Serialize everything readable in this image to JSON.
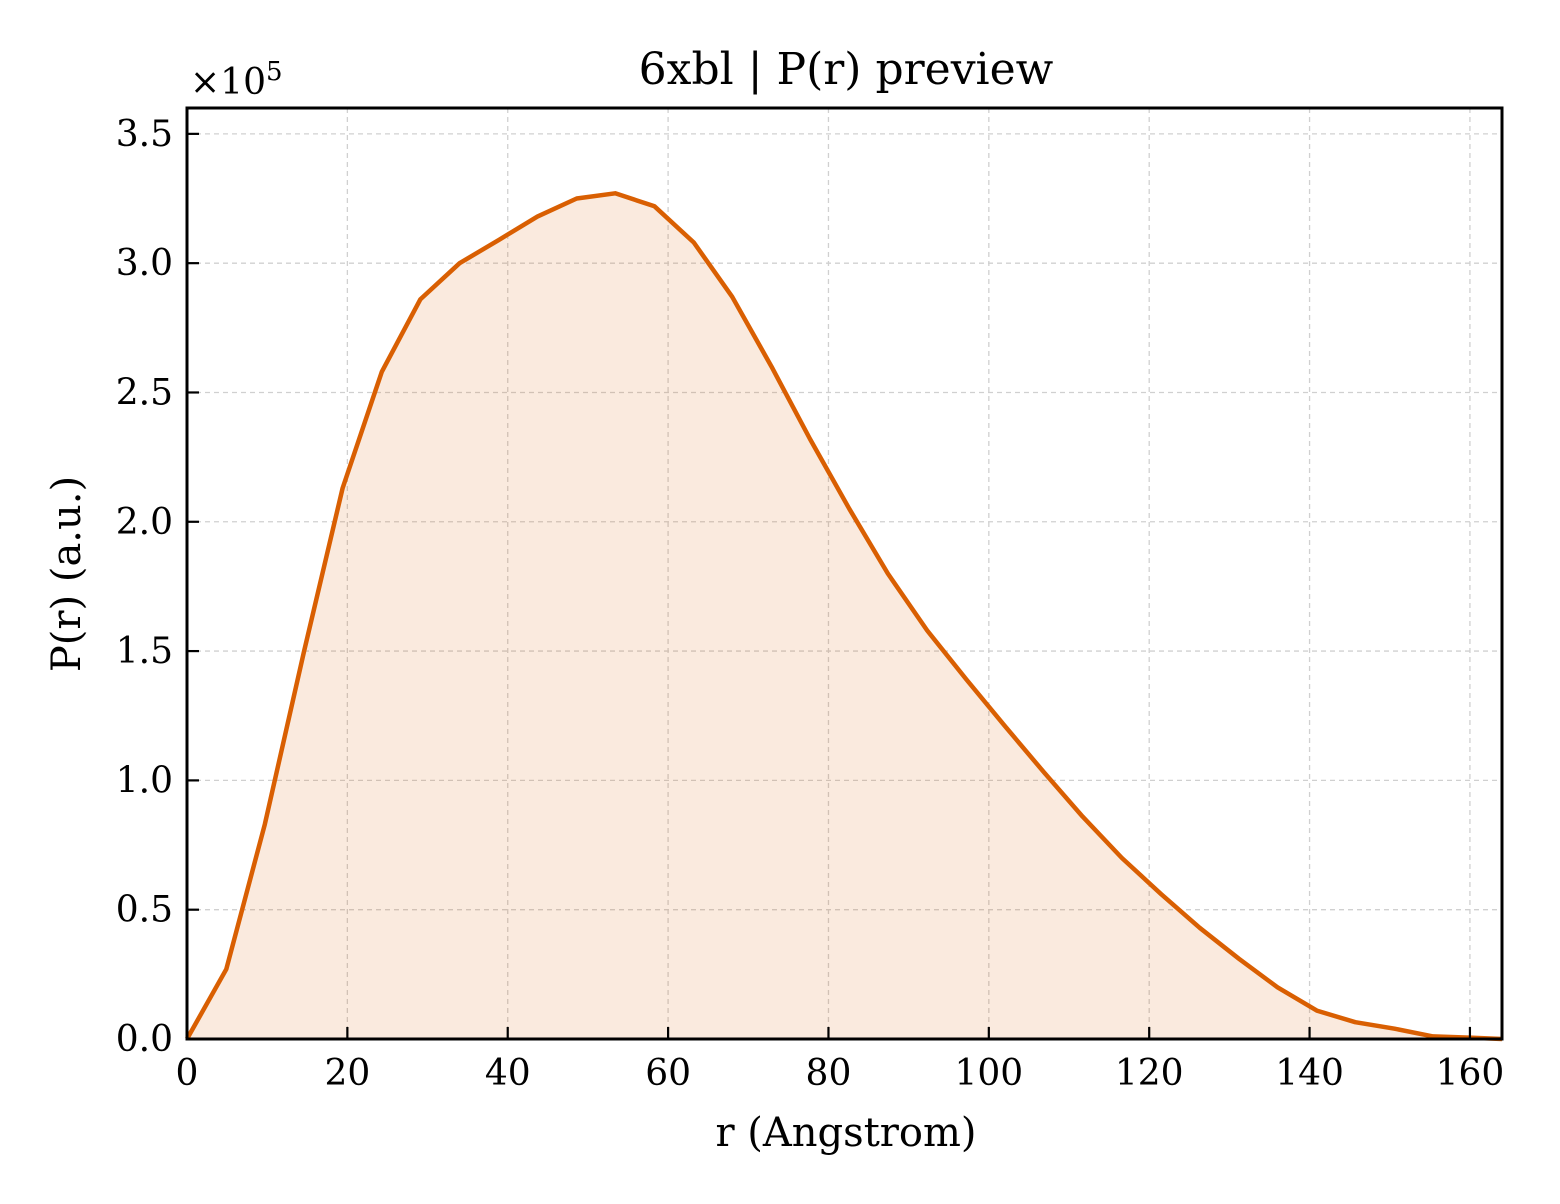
{
  "chart_data": {
    "type": "area",
    "title": "6xbl | P(r) preview",
    "xlabel": "r (Angstrom)",
    "ylabel": "P(r) (a.u.)",
    "y_multiplier_label": "×10",
    "y_multiplier_exponent": "5",
    "y_scale_factor": 100000,
    "xlim": [
      0,
      164
    ],
    "ylim": [
      0,
      3.6
    ],
    "x_ticks": [
      0,
      20,
      40,
      60,
      80,
      100,
      120,
      140,
      160
    ],
    "x_tick_labels": [
      "0",
      "20",
      "40",
      "60",
      "80",
      "100",
      "120",
      "140",
      "160"
    ],
    "y_ticks": [
      0.0,
      0.5,
      1.0,
      1.5,
      2.0,
      2.5,
      3.0,
      3.5
    ],
    "y_tick_labels": [
      "0.0",
      "0.5",
      "1.0",
      "1.5",
      "2.0",
      "2.5",
      "3.0",
      "3.5"
    ],
    "grid": true,
    "series": [
      {
        "color": "#d95f02",
        "fill_color": "#d95f02",
        "fill_opacity": 0.13,
        "x": [
          0,
          4.9,
          9.7,
          14.6,
          19.4,
          24.3,
          29.1,
          34.0,
          38.9,
          43.7,
          48.6,
          53.4,
          58.3,
          63.2,
          68.0,
          72.9,
          77.7,
          82.6,
          87.4,
          92.3,
          97.2,
          102.0,
          106.9,
          111.7,
          116.6,
          121.5,
          126.3,
          131.2,
          136.0,
          140.9,
          145.7,
          150.6,
          155.4,
          160.3,
          164.0
        ],
        "values": [
          0.0,
          0.27,
          0.83,
          1.5,
          2.13,
          2.58,
          2.86,
          3.0,
          3.09,
          3.18,
          3.25,
          3.27,
          3.22,
          3.08,
          2.87,
          2.6,
          2.32,
          2.05,
          1.8,
          1.58,
          1.39,
          1.21,
          1.03,
          0.86,
          0.7,
          0.56,
          0.43,
          0.31,
          0.2,
          0.11,
          0.065,
          0.04,
          0.01,
          0.005,
          0.0
        ]
      }
    ]
  }
}
